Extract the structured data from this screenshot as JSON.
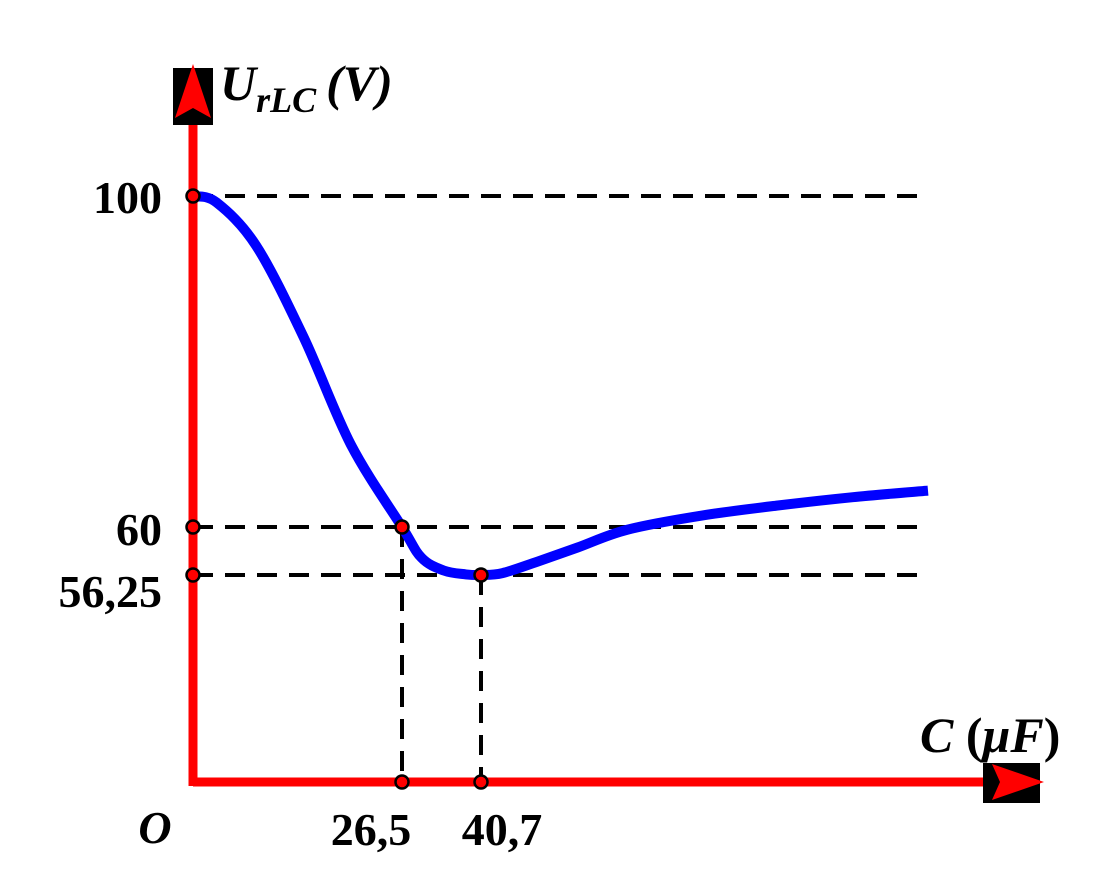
{
  "chart_data": {
    "type": "line",
    "origin_label": "O",
    "x_axis": {
      "label_main": "C",
      "label_open": " (",
      "label_unit": "μF",
      "label_close": ")",
      "ticks": [
        "26,5",
        "40,7"
      ]
    },
    "y_axis": {
      "label_main": "U",
      "label_sub": "rLC",
      "label_unit": "(V)",
      "ticks": [
        "100",
        "60",
        "56,25"
      ]
    },
    "series": [
      {
        "x": [
          0,
          3,
          8,
          14,
          20,
          26.5,
          30,
          34,
          38,
          40.7,
          45,
          52,
          60,
          70,
          85,
          100,
          115,
          130
        ],
        "y": [
          100,
          99.2,
          94,
          83,
          70,
          60,
          57.6,
          56.6,
          56.3,
          56.25,
          56.4,
          57.3,
          58.4,
          59.8,
          61.4,
          62.6,
          63.6,
          64.4
        ]
      }
    ],
    "marked_points": [
      {
        "x": 26.5,
        "y": 60
      },
      {
        "x": 40.7,
        "y": 56.25
      }
    ],
    "guide_levels_y": [
      100,
      60,
      56.25
    ],
    "guide_levels_x": [
      26.5,
      40.7
    ],
    "x_range": [
      0,
      150
    ],
    "y_range": [
      0,
      120
    ],
    "grid": false,
    "colors": {
      "axis": "#ff0000",
      "curve": "#0000ff",
      "guide": "#000000",
      "marker_fill": "#ff0000",
      "marker_stroke": "#000000",
      "arrow_block": "#000000"
    }
  }
}
